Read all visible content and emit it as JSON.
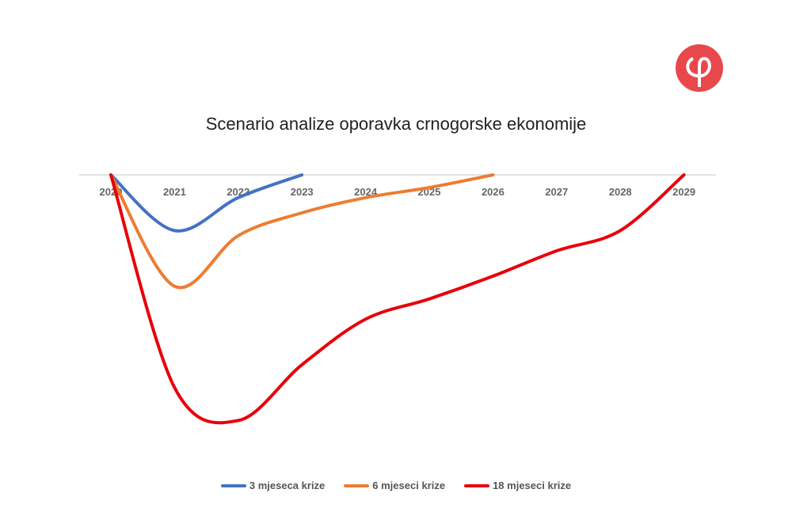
{
  "chart_data": {
    "type": "line",
    "title": "Scenario analize oporavka crnogorske ekonomije",
    "xlabel": "",
    "ylabel": "",
    "categories": [
      "2020",
      "2021",
      "2022",
      "2023",
      "2024",
      "2025",
      "2026",
      "2027",
      "2028",
      "2029"
    ],
    "ylim": [
      -100,
      0
    ],
    "grid": false,
    "legend_position": "bottom",
    "series": [
      {
        "name": "3 mjeseca krize",
        "color": "#4472c4",
        "values": [
          0,
          -22,
          -9,
          0,
          null,
          null,
          null,
          null,
          null,
          null
        ]
      },
      {
        "name": "6 mjeseci krize",
        "color": "#ed7d31",
        "values": [
          0,
          -44,
          -24,
          -15,
          -9,
          -5,
          0,
          null,
          null,
          null
        ]
      },
      {
        "name": "18 mjeseci krize",
        "color": "#e8000b",
        "values": [
          0,
          -84,
          -97,
          -75,
          -57,
          -49,
          -40,
          -30,
          -22,
          0
        ]
      }
    ]
  },
  "logo": {
    "color": "#e8474c",
    "glyph": "φ"
  }
}
